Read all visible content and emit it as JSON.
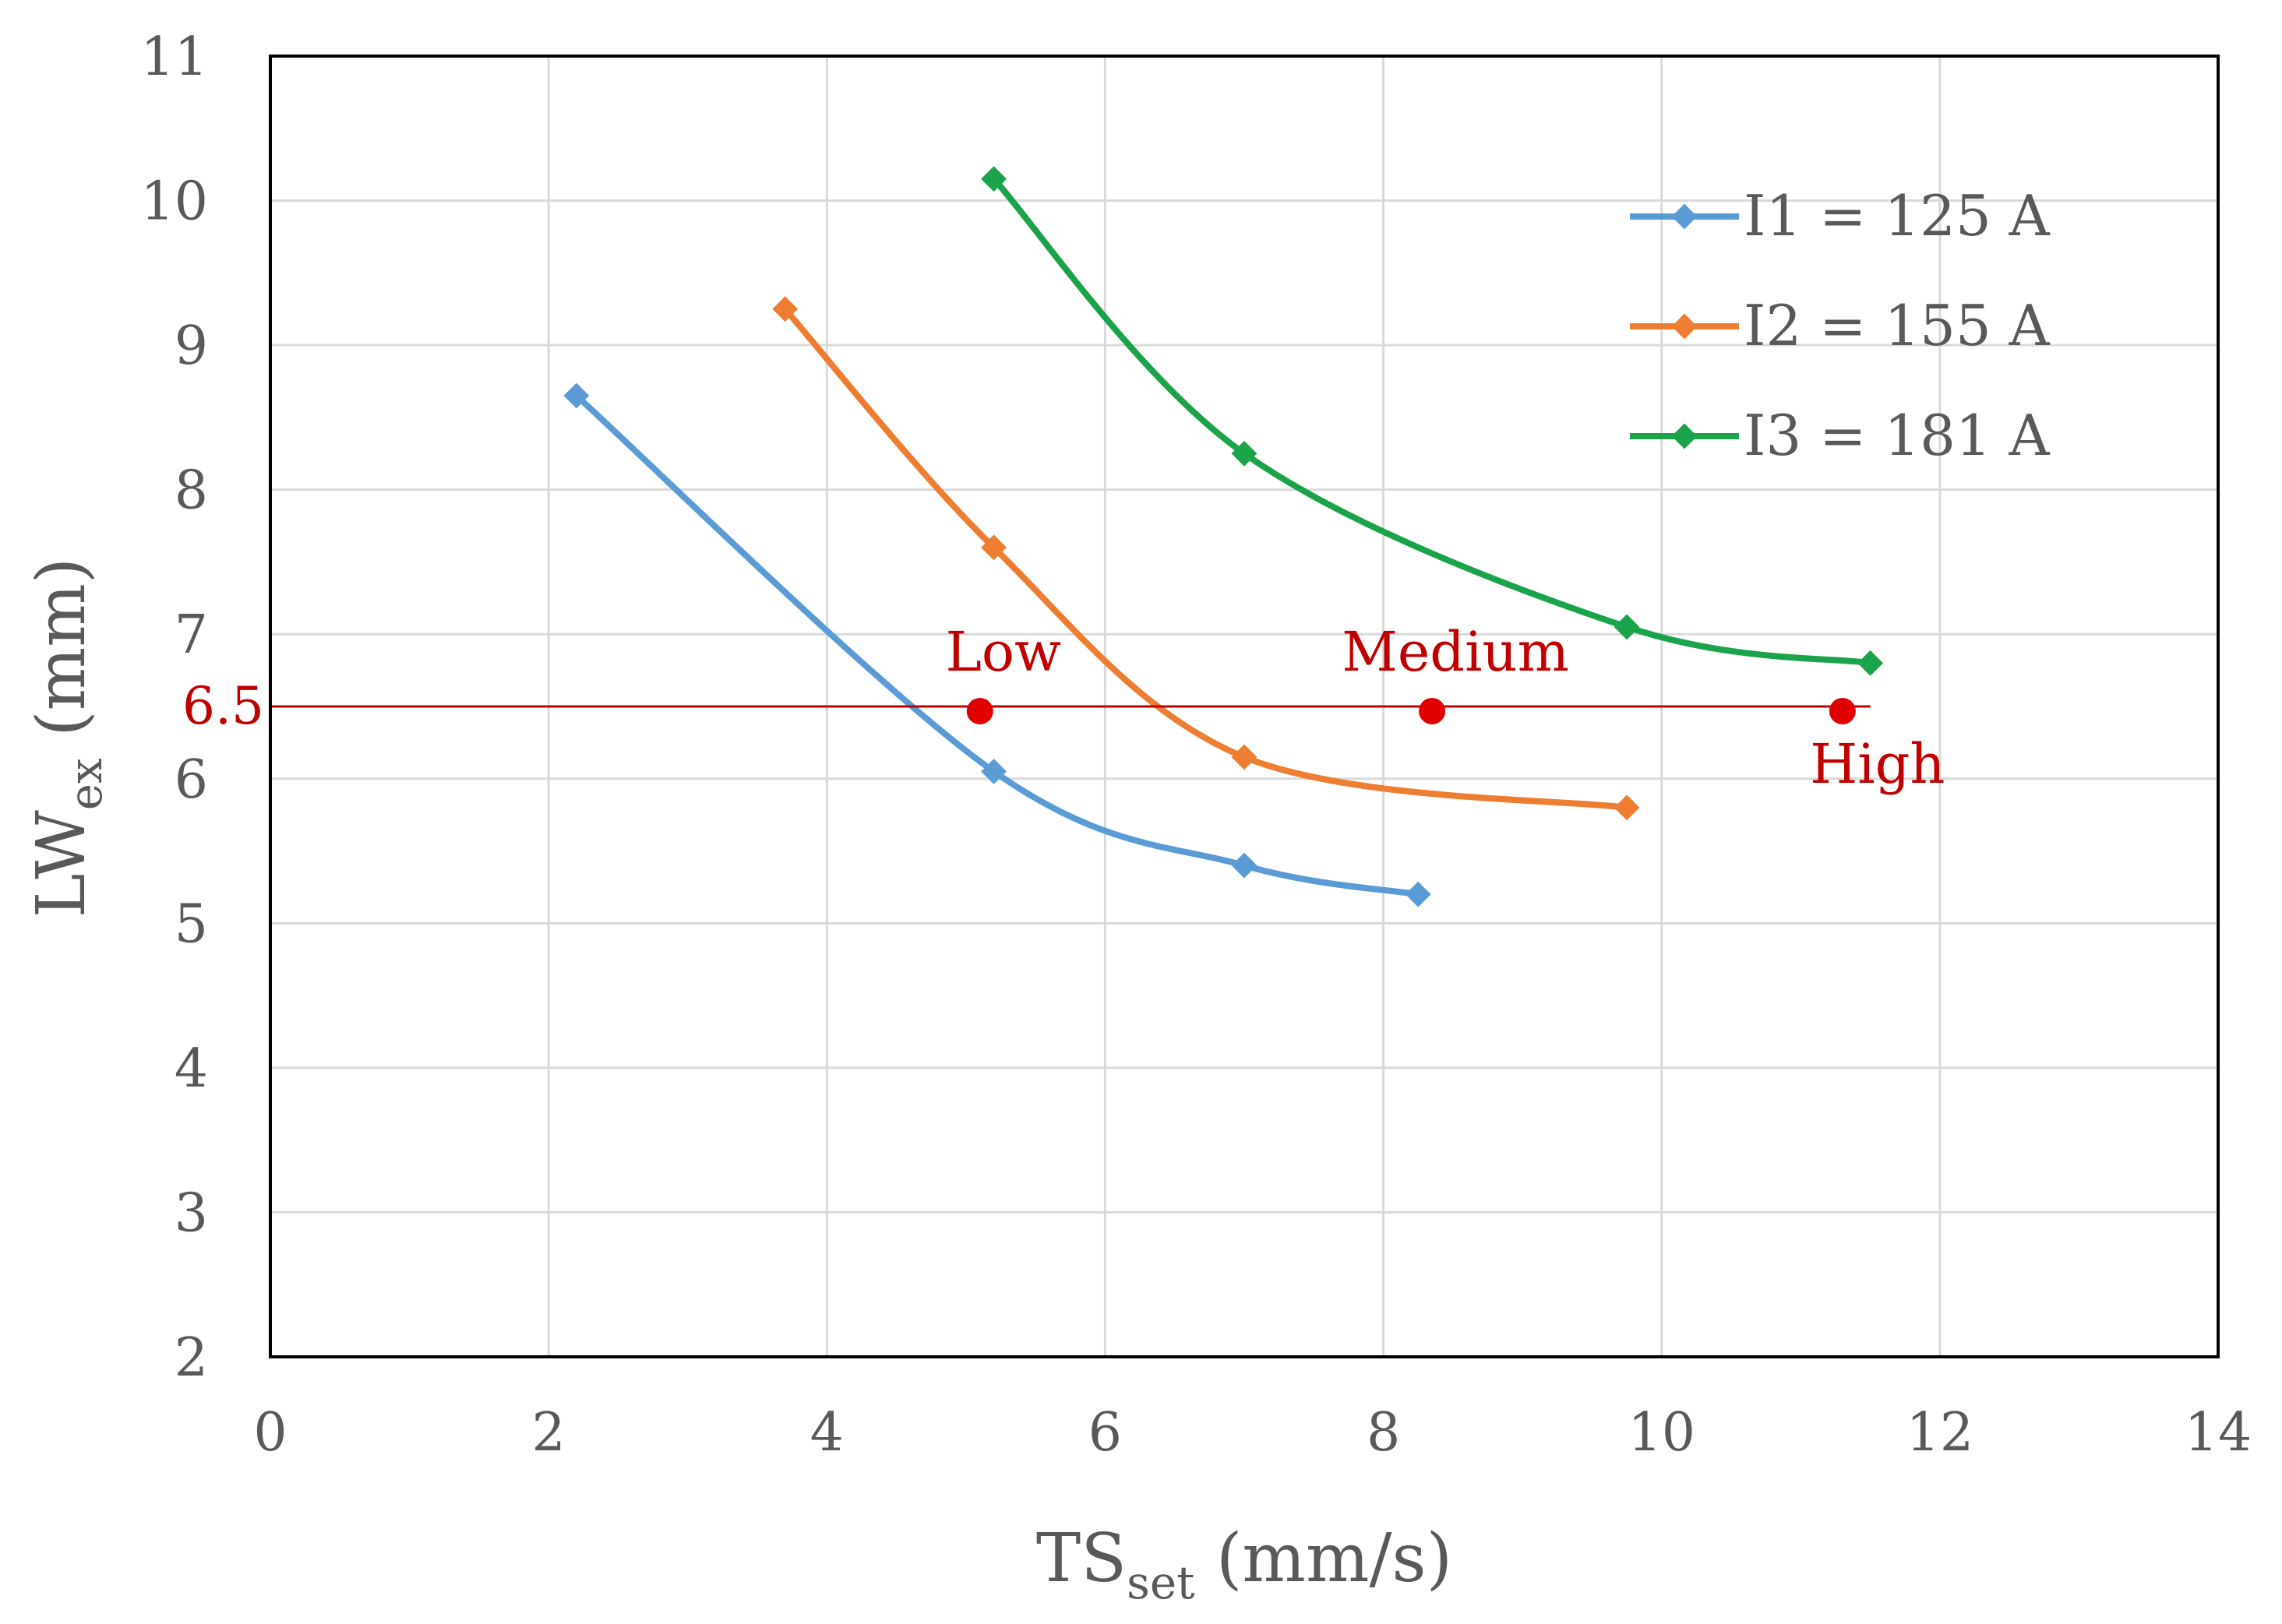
{
  "chart_data": {
    "type": "line",
    "title": "",
    "xlabel_main": "TS",
    "xlabel_sub": "set",
    "xlabel_unit": " (mm/s)",
    "ylabel_main": "LW",
    "ylabel_sub": "ex",
    "ylabel_unit": " (mm)",
    "xlim": [
      0,
      14
    ],
    "ylim": [
      2,
      11
    ],
    "x_ticks": [
      0,
      2,
      4,
      6,
      8,
      10,
      12,
      14
    ],
    "y_ticks": [
      2,
      3,
      4,
      5,
      6,
      7,
      8,
      9,
      10,
      11
    ],
    "grid": true,
    "legend_position": "top-right",
    "series": [
      {
        "name": "I1 = 125 A",
        "color": "#5B9BD5",
        "marker": "diamond",
        "smooth": true,
        "x": [
          2.2,
          5.2,
          7.0,
          8.25
        ],
        "y": [
          8.65,
          6.05,
          5.4,
          5.2
        ]
      },
      {
        "name": "I2 = 155 A",
        "color": "#ED7D31",
        "marker": "diamond",
        "smooth": true,
        "x": [
          3.7,
          5.2,
          7.0,
          9.75
        ],
        "y": [
          9.25,
          7.6,
          6.15,
          5.8
        ]
      },
      {
        "name": "I3 = 181 A",
        "color": "#1AA34A",
        "marker": "diamond",
        "smooth": true,
        "x": [
          5.2,
          7.0,
          9.75,
          11.5
        ],
        "y": [
          10.15,
          8.25,
          7.05,
          6.8
        ]
      }
    ],
    "reference_line": {
      "y": 6.5,
      "label": "6.5",
      "color": "#C00000"
    },
    "annotations": [
      {
        "label": "Low",
        "x": 5.1,
        "y": 6.5,
        "color": "#C00000",
        "label_position": "above"
      },
      {
        "label": "Medium",
        "x": 8.35,
        "y": 6.5,
        "color": "#C00000",
        "label_position": "above"
      },
      {
        "label": "High",
        "x": 11.3,
        "y": 6.5,
        "color": "#C00000",
        "label_position": "below"
      }
    ],
    "colors": {
      "axis": "#000000",
      "grid": "#D9D9D9",
      "text": "#595959",
      "point": "#E00000"
    }
  }
}
